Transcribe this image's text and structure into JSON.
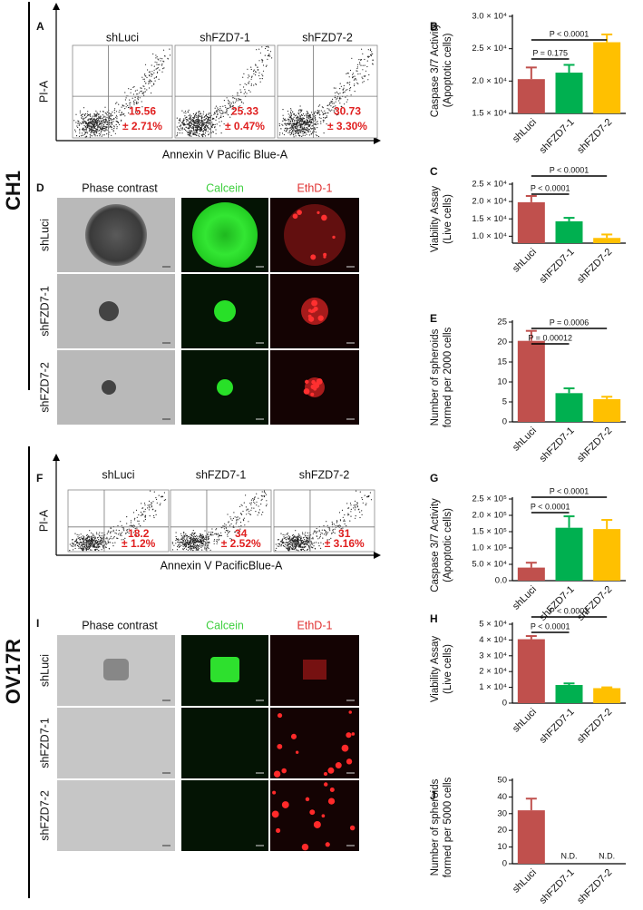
{
  "cell_lines": [
    "CH1",
    "OV17R"
  ],
  "flow_cytometry": [
    {
      "panel": "A",
      "x_label": "Annexin V Pacific Blue-A",
      "y_label": "PI-A",
      "plots": [
        {
          "title": "shLuci",
          "value": "15.56",
          "error": "± 2.71%"
        },
        {
          "title": "shFZD7-1",
          "value": "25.33",
          "error": "± 0.47%"
        },
        {
          "title": "shFZD7-2",
          "value": "30.73",
          "error": "± 3.30%"
        }
      ]
    },
    {
      "panel": "F",
      "x_label": "Annexin V PacificBlue-A",
      "y_label": "PI-A",
      "plots": [
        {
          "title": "shLuci",
          "value": "18.2",
          "error": "± 1.2%"
        },
        {
          "title": "shFZD7-1",
          "value": "34",
          "error": "± 2.52%"
        },
        {
          "title": "shFZD7-2",
          "value": "31",
          "error": "± 3.16%"
        }
      ]
    }
  ],
  "microscopy": [
    {
      "panel": "D",
      "columns": [
        "Phase contrast",
        "Calcein",
        "EthD-1"
      ],
      "rows": [
        "shLuci",
        "shFZD7-1",
        "shFZD7-2"
      ]
    },
    {
      "panel": "I",
      "columns": [
        "Phase contrast",
        "Calcein",
        "EthD-1"
      ],
      "rows": [
        "shLuci",
        "shFZD7-1",
        "shFZD7-2"
      ]
    }
  ],
  "chart_data": [
    {
      "type": "bar",
      "panel": "B",
      "ylabel": [
        "Caspase 3/7 Activity",
        "(Apoptotic cells)"
      ],
      "categories": [
        "shLuci",
        "shFZD7-1",
        "shFZD7-2"
      ],
      "values": [
        20300,
        21300,
        26000
      ],
      "errors": [
        1800,
        1200,
        1200
      ],
      "colors": [
        "#c0504d",
        "#00b050",
        "#ffc000"
      ],
      "ylim": [
        15000,
        30000
      ],
      "yticks": [
        {
          "value": 15000,
          "label": "1.5 × 10⁴"
        },
        {
          "value": 20000,
          "label": "2.0 × 10⁴"
        },
        {
          "value": 25000,
          "label": "2.5 × 10⁴"
        },
        {
          "value": 30000,
          "label": "3.0 × 10⁴"
        }
      ],
      "annotations": [
        "P = 0.175",
        "P < 0.0001"
      ]
    },
    {
      "type": "bar",
      "panel": "C",
      "ylabel": [
        "Viability Assay",
        "(Live cells)"
      ],
      "categories": [
        "shLuci",
        "shFZD7-1",
        "shFZD7-2"
      ],
      "values": [
        19800,
        14300,
        9500
      ],
      "errors": [
        1800,
        1000,
        1000
      ],
      "colors": [
        "#c0504d",
        "#00b050",
        "#ffc000"
      ],
      "ylim": [
        8000,
        25000
      ],
      "yticks": [
        {
          "value": 10000,
          "label": "1.0 × 10⁴"
        },
        {
          "value": 15000,
          "label": "1.5 × 10⁴"
        },
        {
          "value": 20000,
          "label": "2.0 × 10⁴"
        },
        {
          "value": 25000,
          "label": "2.5 × 10⁴"
        }
      ],
      "annotations": [
        "P < 0.0001",
        "P < 0.0001"
      ]
    },
    {
      "type": "bar",
      "panel": "E",
      "ylabel": [
        "Number of spheroids",
        "formed per 2000 cells"
      ],
      "categories": [
        "shLuci",
        "shFZD7-1",
        "shFZD7-2"
      ],
      "values": [
        20.3,
        7.2,
        5.7
      ],
      "errors": [
        2.5,
        1.2,
        0.6
      ],
      "colors": [
        "#c0504d",
        "#00b050",
        "#ffc000"
      ],
      "ylim": [
        0,
        25
      ],
      "yticks": [
        0,
        5,
        10,
        15,
        20,
        25
      ],
      "annotations": [
        "P = 0.00012",
        "P = 0.0006"
      ]
    },
    {
      "type": "bar",
      "panel": "G",
      "ylabel": [
        "Caspase 3/7 Activity",
        "(Apoptotic cells)"
      ],
      "categories": [
        "shLuci",
        "shFZD7-1",
        "shFZD7-2"
      ],
      "values": [
        40000,
        162000,
        158000
      ],
      "errors": [
        15000,
        35000,
        28000
      ],
      "colors": [
        "#c0504d",
        "#00b050",
        "#ffc000"
      ],
      "ylim": [
        0,
        250000
      ],
      "yticks": [
        {
          "value": 0,
          "label": "0.0"
        },
        {
          "value": 50000,
          "label": "5.0 × 10⁴"
        },
        {
          "value": 100000,
          "label": "1.0 × 10⁵"
        },
        {
          "value": 150000,
          "label": "1.5 × 10⁵"
        },
        {
          "value": 200000,
          "label": "2.0 × 10⁵"
        },
        {
          "value": 250000,
          "label": "2.5 × 10⁵"
        }
      ],
      "annotations": [
        "P < 0.0001",
        "P < 0.0001"
      ]
    },
    {
      "type": "bar",
      "panel": "H",
      "ylabel": [
        "Viability Assay",
        "(Live cells)"
      ],
      "categories": [
        "shLuci",
        "shFZD7-1",
        "shFZD7-2"
      ],
      "values": [
        40500,
        11500,
        9500
      ],
      "errors": [
        2000,
        1000,
        500
      ],
      "colors": [
        "#c0504d",
        "#00b050",
        "#ffc000"
      ],
      "ylim": [
        0,
        50000
      ],
      "yticks": [
        0,
        {
          "value": 10000,
          "label": "1 × 10⁴"
        },
        {
          "value": 20000,
          "label": "2 × 10⁴"
        },
        {
          "value": 30000,
          "label": "3 × 10⁴"
        },
        {
          "value": 40000,
          "label": "4 × 10⁴"
        },
        {
          "value": 50000,
          "label": "5 × 10⁴"
        }
      ],
      "annotations": [
        "P < 0.0001",
        "P < 0.0001"
      ]
    },
    {
      "type": "bar",
      "panel": "J",
      "ylabel": [
        "Number of spheroids",
        "formed per 5000 cells"
      ],
      "categories": [
        "shLuci",
        "shFZD7-1",
        "shFZD7-2"
      ],
      "values": [
        32,
        null,
        null
      ],
      "errors": [
        7,
        null,
        null
      ],
      "value_labels": [
        null,
        "N.D.",
        "N.D."
      ],
      "colors": [
        "#c0504d",
        "#00b050",
        "#ffc000"
      ],
      "ylim": [
        0,
        50
      ],
      "yticks": [
        0,
        10,
        20,
        30,
        40,
        50
      ]
    }
  ]
}
